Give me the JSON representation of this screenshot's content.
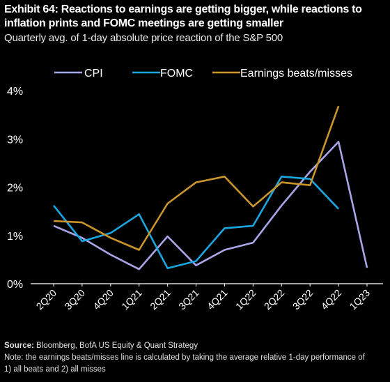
{
  "title": "Exhibit 64: Reactions to earnings are getting bigger, while reactions to inflation prints and FOMC meetings are getting smaller",
  "subtitle": "Quarterly avg. of 1-day absolute price reaction of the S&P 500",
  "source_label": "Source:",
  "source_text": "Bloomberg, BofA US Equity & Quant Strategy",
  "note": "Note: the earnings beats/misses line is calculated by taking the average relative 1-day performance of 1) all beats and 2) all misses",
  "colors": {
    "background": "#000000",
    "cpi": "#a8a6e8",
    "fomc": "#1aa7e0",
    "earnings": "#c9952c"
  },
  "chart_data": {
    "type": "line",
    "categories": [
      "2Q20",
      "3Q20",
      "4Q20",
      "1Q21",
      "2Q21",
      "3Q21",
      "4Q21",
      "1Q22",
      "2Q22",
      "3Q22",
      "4Q22",
      "1Q23"
    ],
    "y_ticks": [
      "0%",
      "1%",
      "2%",
      "3%",
      "4%"
    ],
    "ylim": [
      0,
      4
    ],
    "grid": false,
    "legend_position": "top",
    "series": [
      {
        "name": "CPI",
        "color": "#a8a6e8",
        "values": [
          1.2,
          0.95,
          0.6,
          0.3,
          0.98,
          0.38,
          0.7,
          0.85,
          1.62,
          2.32,
          2.94,
          0.33
        ]
      },
      {
        "name": "FOMC",
        "color": "#1aa7e0",
        "values": [
          1.62,
          0.88,
          1.05,
          1.44,
          0.32,
          0.47,
          1.15,
          1.2,
          2.22,
          2.17,
          1.55,
          null
        ]
      },
      {
        "name": "Earnings beats/misses",
        "color": "#c9952c",
        "values": [
          1.3,
          1.27,
          0.95,
          0.7,
          1.66,
          2.1,
          2.22,
          1.6,
          2.1,
          2.04,
          3.68,
          null
        ]
      }
    ]
  }
}
